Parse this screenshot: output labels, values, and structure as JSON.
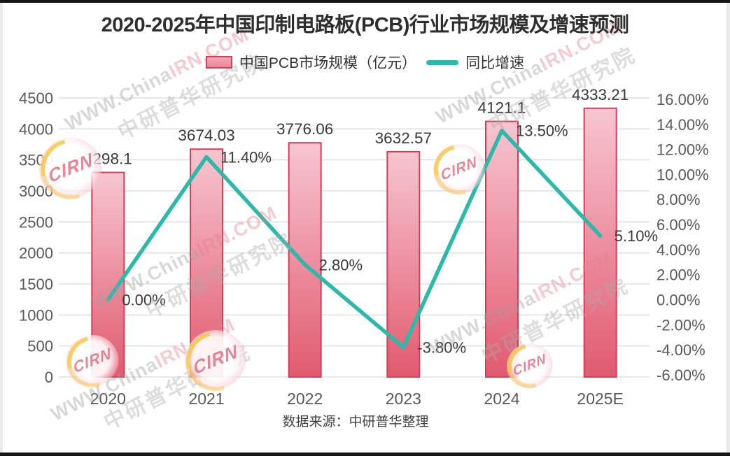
{
  "chart_data": {
    "type": "bar",
    "title": "2020-2025年中国印制电路板(PCB)行业市场规模及增速预测",
    "source": "数据来源：中研普华整理",
    "categories": [
      "2020",
      "2021",
      "2022",
      "2023",
      "2024",
      "2025E"
    ],
    "series": [
      {
        "name": "中国PCB市场规模（亿元）",
        "type": "bar",
        "axis": "left",
        "values": [
          3298.1,
          3674.03,
          3776.06,
          3632.57,
          4121.1,
          4333.21
        ],
        "labels": [
          "3298.1",
          "3674.03",
          "3776.06",
          "3632.57",
          "4121.1",
          "4333.21"
        ]
      },
      {
        "name": "同比增速",
        "type": "line",
        "axis": "right",
        "values": [
          0.0,
          11.4,
          2.8,
          -3.8,
          13.5,
          5.1
        ],
        "labels": [
          "0.00%",
          "11.40%",
          "2.80%",
          "-3.80%",
          "13.50%",
          "5.10%"
        ]
      }
    ],
    "left_axis": {
      "min": 0,
      "max": 4500,
      "step": 500,
      "tick_labels": [
        "0",
        "500",
        "1000",
        "1500",
        "2000",
        "2500",
        "3000",
        "3500",
        "4000",
        "4500"
      ]
    },
    "right_axis": {
      "min": -6,
      "max": 16,
      "step": 2,
      "tick_labels": [
        "16.00%",
        "14.00%",
        "12.00%",
        "10.00%",
        "8.00%",
        "6.00%",
        "4.00%",
        "2.00%",
        "0.00%",
        "-2.00%",
        "-4.00%",
        "-6.00%"
      ]
    },
    "grid": true,
    "legend_position": "top",
    "colors": {
      "bar_fill_top": "#f7c6d0",
      "bar_fill_bottom": "#e15a6e",
      "bar_border": "#d63e57",
      "line": "#2cb9aa",
      "grid": "#dbdbdb",
      "axis_text": "#595959",
      "label_text": "#3a3a3a",
      "title_text": "#2e2e2e"
    }
  },
  "watermark": {
    "site_gray": "WWW.China",
    "site_red": "IRN.COM",
    "cn": "中研普华研究院",
    "logo": "CIRN"
  }
}
